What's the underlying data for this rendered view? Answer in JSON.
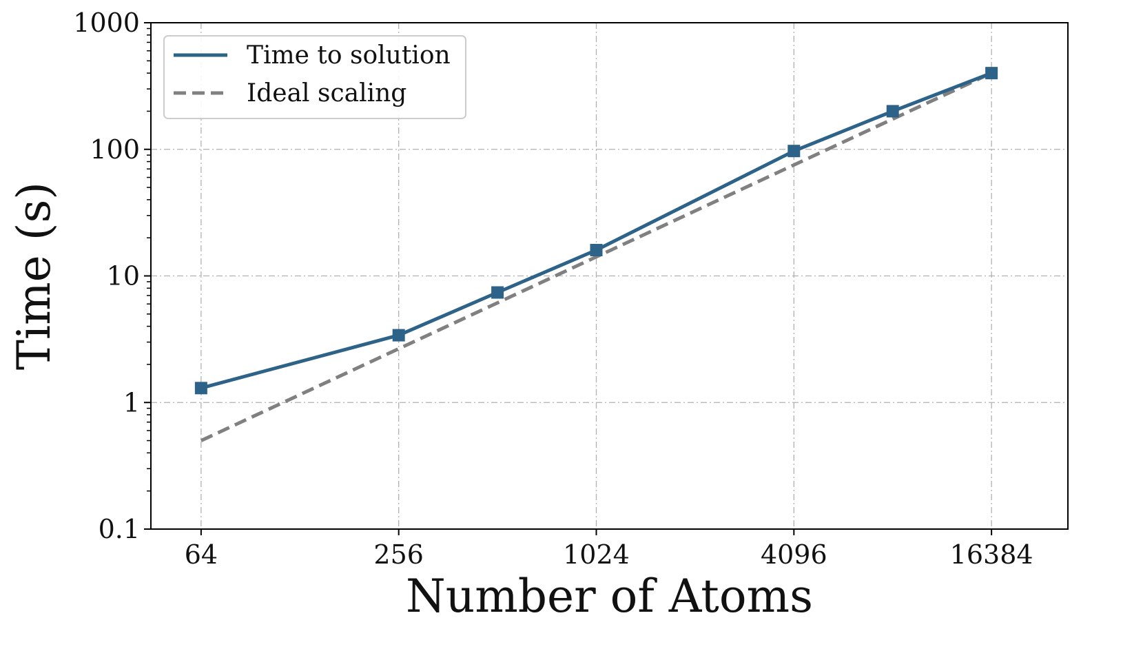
{
  "chart_data": {
    "type": "line",
    "title": "",
    "xlabel": "Number of Atoms",
    "ylabel": "Time (s)",
    "x_scale": "log2",
    "y_scale": "log10",
    "xlim": [
      45,
      28000
    ],
    "ylim": [
      0.1,
      1000
    ],
    "x_ticks": [
      64,
      256,
      1024,
      4096,
      16384
    ],
    "x_tick_labels": [
      "64",
      "256",
      "1024",
      "4096",
      "16384"
    ],
    "y_ticks": [
      0.1,
      1,
      10,
      100,
      1000
    ],
    "y_tick_labels": [
      "0.1",
      "1",
      "10",
      "100",
      "1000"
    ],
    "grid": true,
    "legend_position": "top-left",
    "series": [
      {
        "name": "Time to solution",
        "style": "solid",
        "marker": "square",
        "color": "#2e6389",
        "x": [
          64,
          256,
          512,
          1024,
          4096,
          8192,
          16384
        ],
        "y": [
          1.3,
          3.4,
          7.4,
          16,
          97,
          200,
          400
        ]
      },
      {
        "name": "Ideal scaling",
        "style": "dashed",
        "marker": "none",
        "color": "#808080",
        "x": [
          64,
          16384
        ],
        "y": [
          0.5,
          400
        ]
      }
    ]
  }
}
